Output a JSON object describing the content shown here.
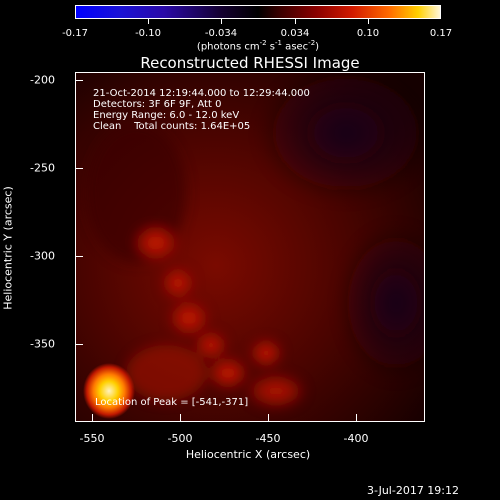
{
  "colorbar": {
    "ticks": [
      "-0.17",
      "-0.10",
      "-0.034",
      "0.034",
      "0.10",
      "0.17"
    ],
    "unit_main": "(photons cm",
    "unit_exp1": "-2",
    "unit_mid": " s",
    "unit_exp2": "-1",
    "unit_mid2": " asec",
    "unit_exp3": "-2",
    "unit_end": ")"
  },
  "title": "Reconstructed RHESSI Image",
  "info": {
    "line1": "21-Oct-2014 12:19:44.000 to 12:29:44.000",
    "line2": "Detectors: 3F 6F 9F, Att 0",
    "line3": "Energy Range: 6.0 - 12.0 keV",
    "line4": "Clean    Total counts: 1.64E+05"
  },
  "axes": {
    "xlabel": "Heliocentric X (arcsec)",
    "ylabel": "Heliocentric Y (arcsec)",
    "xticks": [
      "-550",
      "-500",
      "-450",
      "-400"
    ],
    "yticks": [
      "-200",
      "-250",
      "-300",
      "-350"
    ]
  },
  "peak_label": "Location of Peak = [-541,-371]",
  "datestamp": "3-Jul-2017 19:12"
}
